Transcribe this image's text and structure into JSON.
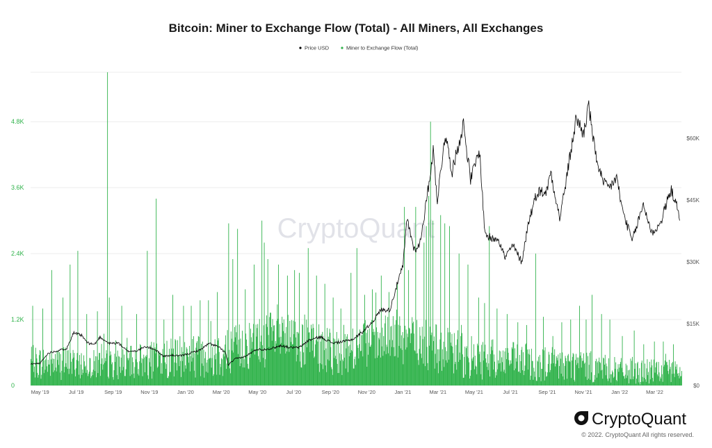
{
  "chart_data": {
    "type": "bar+line",
    "title": "Bitcoin: Miner to Exchange Flow (Total) - All Miners, All Exchanges",
    "legend": {
      "placement": "top-center",
      "entries": [
        {
          "name": "Price USD",
          "color": "#000000"
        },
        {
          "name": "Miner to Exchange Flow (Total)",
          "color": "#2fb24a"
        }
      ]
    },
    "grid": true,
    "x_range": [
      "2019-04-15",
      "2022-04-15"
    ],
    "x_ticks": [
      "May '19",
      "Jul '19",
      "Sep '19",
      "Nov '19",
      "Jan '20",
      "Mar '20",
      "May '20",
      "Jul '20",
      "Sep '20",
      "Nov '20",
      "Jan '21",
      "Mar '21",
      "May '21",
      "Jul '21",
      "Sep '21",
      "Nov '21",
      "Jan '22",
      "Mar '22"
    ],
    "y_left": {
      "min": 0,
      "max": 5700,
      "ticks": [
        0,
        1200,
        2400,
        3600,
        4800
      ],
      "tick_labels": [
        "0",
        "1.2K",
        "2.4K",
        "3.6K",
        "4.8K"
      ]
    },
    "y_right": {
      "min": 0,
      "max": 76000,
      "ticks": [
        0,
        15000,
        30000,
        45000,
        60000
      ],
      "tick_labels": [
        "$0",
        "$15K",
        "$30K",
        "$45K",
        "$60K"
      ]
    },
    "series": [
      {
        "name": "Price USD",
        "kind": "line",
        "axis": "right",
        "color": "#000000",
        "points": [
          [
            "2019-04-15",
            5200
          ],
          [
            "2019-05-01",
            5400
          ],
          [
            "2019-05-15",
            7900
          ],
          [
            "2019-06-01",
            8500
          ],
          [
            "2019-06-15",
            9000
          ],
          [
            "2019-06-26",
            12800
          ],
          [
            "2019-07-10",
            12100
          ],
          [
            "2019-07-20",
            10300
          ],
          [
            "2019-08-01",
            10000
          ],
          [
            "2019-08-10",
            11800
          ],
          [
            "2019-08-25",
            10200
          ],
          [
            "2019-09-10",
            10300
          ],
          [
            "2019-09-25",
            8300
          ],
          [
            "2019-10-10",
            8400
          ],
          [
            "2019-10-26",
            9400
          ],
          [
            "2019-11-10",
            8800
          ],
          [
            "2019-11-25",
            7100
          ],
          [
            "2019-12-10",
            7300
          ],
          [
            "2019-12-25",
            7200
          ],
          [
            "2020-01-10",
            7900
          ],
          [
            "2020-01-25",
            8600
          ],
          [
            "2020-02-10",
            10200
          ],
          [
            "2020-02-25",
            9400
          ],
          [
            "2020-03-08",
            8000
          ],
          [
            "2020-03-13",
            5000
          ],
          [
            "2020-03-25",
            6500
          ],
          [
            "2020-04-10",
            7000
          ],
          [
            "2020-04-30",
            8800
          ],
          [
            "2020-05-10",
            8700
          ],
          [
            "2020-05-25",
            9000
          ],
          [
            "2020-06-10",
            9700
          ],
          [
            "2020-06-25",
            9200
          ],
          [
            "2020-07-10",
            9200
          ],
          [
            "2020-07-27",
            11000
          ],
          [
            "2020-08-15",
            11800
          ],
          [
            "2020-09-05",
            10300
          ],
          [
            "2020-09-25",
            10700
          ],
          [
            "2020-10-10",
            11300
          ],
          [
            "2020-10-25",
            13000
          ],
          [
            "2020-11-10",
            15300
          ],
          [
            "2020-11-25",
            18400
          ],
          [
            "2020-12-10",
            18300
          ],
          [
            "2020-12-20",
            23500
          ],
          [
            "2021-01-01",
            29000
          ],
          [
            "2021-01-08",
            40500
          ],
          [
            "2021-01-20",
            33000
          ],
          [
            "2021-01-29",
            34000
          ],
          [
            "2021-02-10",
            45000
          ],
          [
            "2021-02-21",
            57000
          ],
          [
            "2021-02-28",
            45000
          ],
          [
            "2021-03-13",
            61000
          ],
          [
            "2021-03-25",
            52000
          ],
          [
            "2021-04-13",
            63500
          ],
          [
            "2021-04-25",
            50000
          ],
          [
            "2021-05-10",
            57000
          ],
          [
            "2021-05-19",
            37000
          ],
          [
            "2021-05-30",
            35500
          ],
          [
            "2021-06-10",
            36000
          ],
          [
            "2021-06-22",
            31000
          ],
          [
            "2021-07-05",
            34000
          ],
          [
            "2021-07-20",
            30000
          ],
          [
            "2021-08-01",
            40000
          ],
          [
            "2021-08-15",
            47000
          ],
          [
            "2021-08-31",
            47000
          ],
          [
            "2021-09-07",
            52000
          ],
          [
            "2021-09-22",
            40500
          ],
          [
            "2021-10-01",
            48000
          ],
          [
            "2021-10-20",
            65000
          ],
          [
            "2021-11-01",
            61000
          ],
          [
            "2021-11-10",
            68000
          ],
          [
            "2021-11-20",
            57000
          ],
          [
            "2021-12-04",
            49000
          ],
          [
            "2021-12-15",
            48000
          ],
          [
            "2021-12-27",
            50500
          ],
          [
            "2022-01-05",
            43000
          ],
          [
            "2022-01-22",
            35000
          ],
          [
            "2022-02-10",
            44000
          ],
          [
            "2022-02-24",
            37000
          ],
          [
            "2022-03-10",
            39000
          ],
          [
            "2022-03-28",
            47500
          ],
          [
            "2022-04-05",
            45000
          ],
          [
            "2022-04-12",
            40000
          ]
        ]
      },
      {
        "name": "Miner to Exchange Flow (Total)",
        "kind": "bar",
        "axis": "left",
        "color": "#2fb24a",
        "baseline_ranges": [
          [
            "2019-04-15",
            420,
            320
          ],
          [
            "2019-09-01",
            380,
            280
          ],
          [
            "2020-03-01",
            600,
            450
          ],
          [
            "2020-06-01",
            880,
            520
          ],
          [
            "2020-09-01",
            600,
            450
          ],
          [
            "2021-01-01",
            850,
            500
          ],
          [
            "2021-05-01",
            480,
            400
          ],
          [
            "2021-08-01",
            420,
            340
          ],
          [
            "2021-11-01",
            360,
            300
          ],
          [
            "2022-01-01",
            260,
            240
          ],
          [
            "2022-04-15",
            240,
            220
          ]
        ],
        "spikes": [
          [
            "2019-04-18",
            1450
          ],
          [
            "2019-05-05",
            1400
          ],
          [
            "2019-05-20",
            2100
          ],
          [
            "2019-06-08",
            1600
          ],
          [
            "2019-06-20",
            2200
          ],
          [
            "2019-07-03",
            2450
          ],
          [
            "2019-07-18",
            1300
          ],
          [
            "2019-08-05",
            1350
          ],
          [
            "2019-08-22",
            5700
          ],
          [
            "2019-08-25",
            1600
          ],
          [
            "2019-09-15",
            1450
          ],
          [
            "2019-10-10",
            1300
          ],
          [
            "2019-10-28",
            2450
          ],
          [
            "2019-11-12",
            3400
          ],
          [
            "2019-11-25",
            1200
          ],
          [
            "2019-12-10",
            1650
          ],
          [
            "2019-12-28",
            1450
          ],
          [
            "2020-01-10",
            1450
          ],
          [
            "2020-01-25",
            1550
          ],
          [
            "2020-02-08",
            1550
          ],
          [
            "2020-02-23",
            1700
          ],
          [
            "2020-03-13",
            2950
          ],
          [
            "2020-03-20",
            2300
          ],
          [
            "2020-03-28",
            2850
          ],
          [
            "2020-04-10",
            1750
          ],
          [
            "2020-04-25",
            2200
          ],
          [
            "2020-05-08",
            3000
          ],
          [
            "2020-05-12",
            2600
          ],
          [
            "2020-05-18",
            2300
          ],
          [
            "2020-06-05",
            2200
          ],
          [
            "2020-06-20",
            2000
          ],
          [
            "2020-07-02",
            2100
          ],
          [
            "2020-07-10",
            2050
          ],
          [
            "2020-07-25",
            2500
          ],
          [
            "2020-08-08",
            2000
          ],
          [
            "2020-08-22",
            1850
          ],
          [
            "2020-09-05",
            1600
          ],
          [
            "2020-09-18",
            1400
          ],
          [
            "2020-10-05",
            2050
          ],
          [
            "2020-10-15",
            2500
          ],
          [
            "2020-10-28",
            1650
          ],
          [
            "2020-11-10",
            1750
          ],
          [
            "2020-11-25",
            2000
          ],
          [
            "2020-12-08",
            1700
          ],
          [
            "2020-12-22",
            1850
          ],
          [
            "2021-01-03",
            3250
          ],
          [
            "2021-01-10",
            2100
          ],
          [
            "2021-01-22",
            3250
          ],
          [
            "2021-02-05",
            2600
          ],
          [
            "2021-02-09",
            2900
          ],
          [
            "2021-02-13",
            3450
          ],
          [
            "2021-02-16",
            4800
          ],
          [
            "2021-02-20",
            3000
          ],
          [
            "2021-03-05",
            3100
          ],
          [
            "2021-03-12",
            2950
          ],
          [
            "2021-03-20",
            2900
          ],
          [
            "2021-04-05",
            2400
          ],
          [
            "2021-04-20",
            2200
          ],
          [
            "2021-05-08",
            1600
          ],
          [
            "2021-05-18",
            1500
          ],
          [
            "2021-05-26",
            2900
          ],
          [
            "2021-06-08",
            1400
          ],
          [
            "2021-06-25",
            1300
          ],
          [
            "2021-07-13",
            1150
          ],
          [
            "2021-07-28",
            1100
          ],
          [
            "2021-08-12",
            2400
          ],
          [
            "2021-08-25",
            1250
          ],
          [
            "2021-09-10",
            900
          ],
          [
            "2021-09-25",
            1150
          ],
          [
            "2021-10-10",
            1200
          ],
          [
            "2021-10-25",
            1450
          ],
          [
            "2021-11-05",
            1200
          ],
          [
            "2021-11-15",
            1650
          ],
          [
            "2021-12-01",
            1300
          ],
          [
            "2021-12-15",
            1200
          ],
          [
            "2022-01-05",
            900
          ],
          [
            "2022-01-25",
            1000
          ],
          [
            "2022-02-10",
            750
          ],
          [
            "2022-02-28",
            800
          ],
          [
            "2022-03-15",
            800
          ],
          [
            "2022-04-01",
            750
          ]
        ]
      }
    ],
    "watermark": "CryptoQuant"
  },
  "branding": {
    "logo_text": "CryptoQuant",
    "copyright": "© 2022. CryptoQuant All rights reserved."
  }
}
